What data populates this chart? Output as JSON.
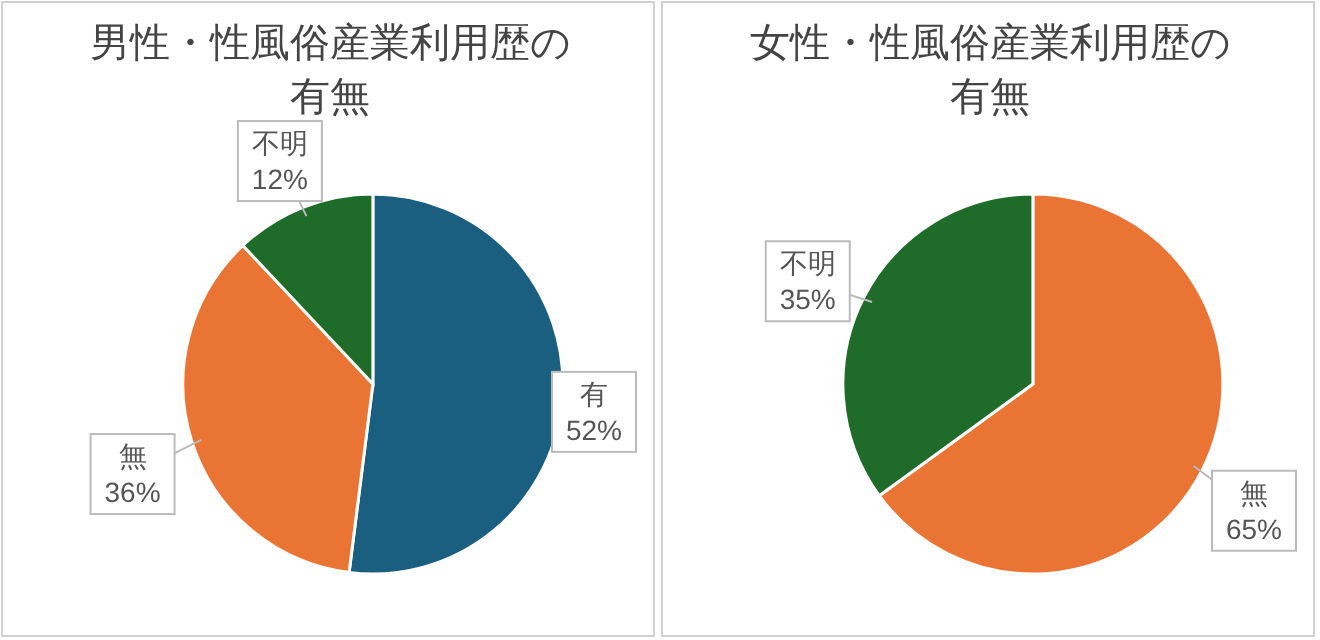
{
  "chart_data": [
    {
      "type": "pie",
      "title": "男性・性風俗産業利用歴の有無",
      "categories": [
        "有",
        "無",
        "不明"
      ],
      "values": [
        52,
        36,
        12
      ],
      "colors": [
        "#1a5e80",
        "#e97434",
        "#1e6b2a"
      ],
      "value_labels": [
        "52%",
        "36%",
        "12%"
      ]
    },
    {
      "type": "pie",
      "title": "女性・性風俗産業利用歴の有無",
      "categories": [
        "無",
        "不明"
      ],
      "values": [
        65,
        35
      ],
      "colors": [
        "#e97434",
        "#1e6b2a"
      ],
      "value_labels": [
        "65%",
        "35%"
      ]
    }
  ]
}
